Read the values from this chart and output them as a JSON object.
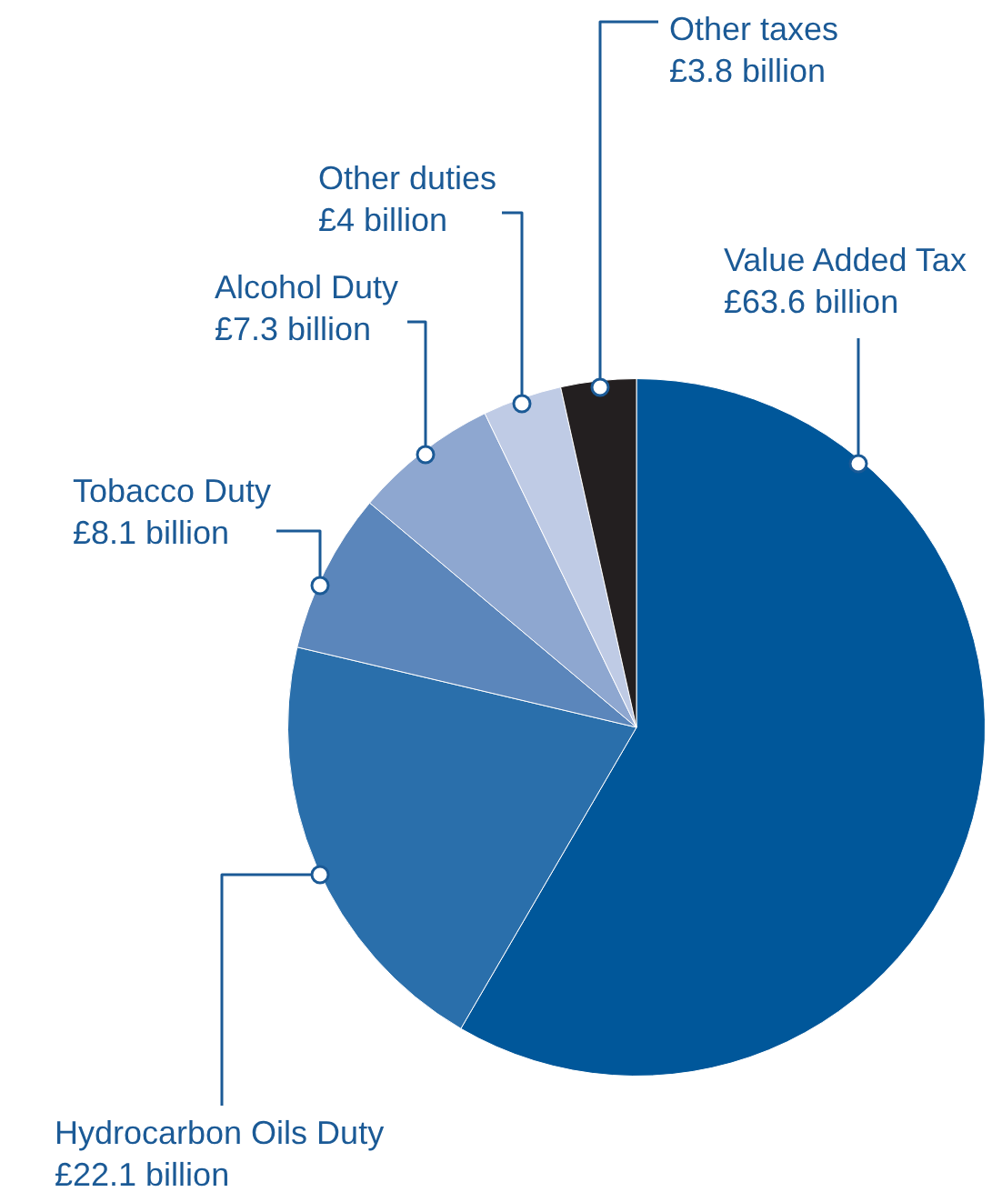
{
  "chart_data": {
    "type": "pie",
    "categories": [
      "Value Added Tax",
      "Hydrocarbon Oils Duty",
      "Tobacco Duty",
      "Alcohol Duty",
      "Other duties",
      "Other taxes"
    ],
    "values": [
      63.6,
      22.1,
      8.1,
      7.3,
      4,
      3.8
    ],
    "value_labels": [
      "£63.6 billion",
      "£22.1 billion",
      "£8.1 billion",
      "£7.3 billion",
      "£4 billion",
      "£3.8 billion"
    ],
    "colors": [
      "#00579a",
      "#2a6fab",
      "#5b86bb",
      "#8ea7d0",
      "#bfcbe5",
      "#231f20"
    ],
    "legend": false
  }
}
